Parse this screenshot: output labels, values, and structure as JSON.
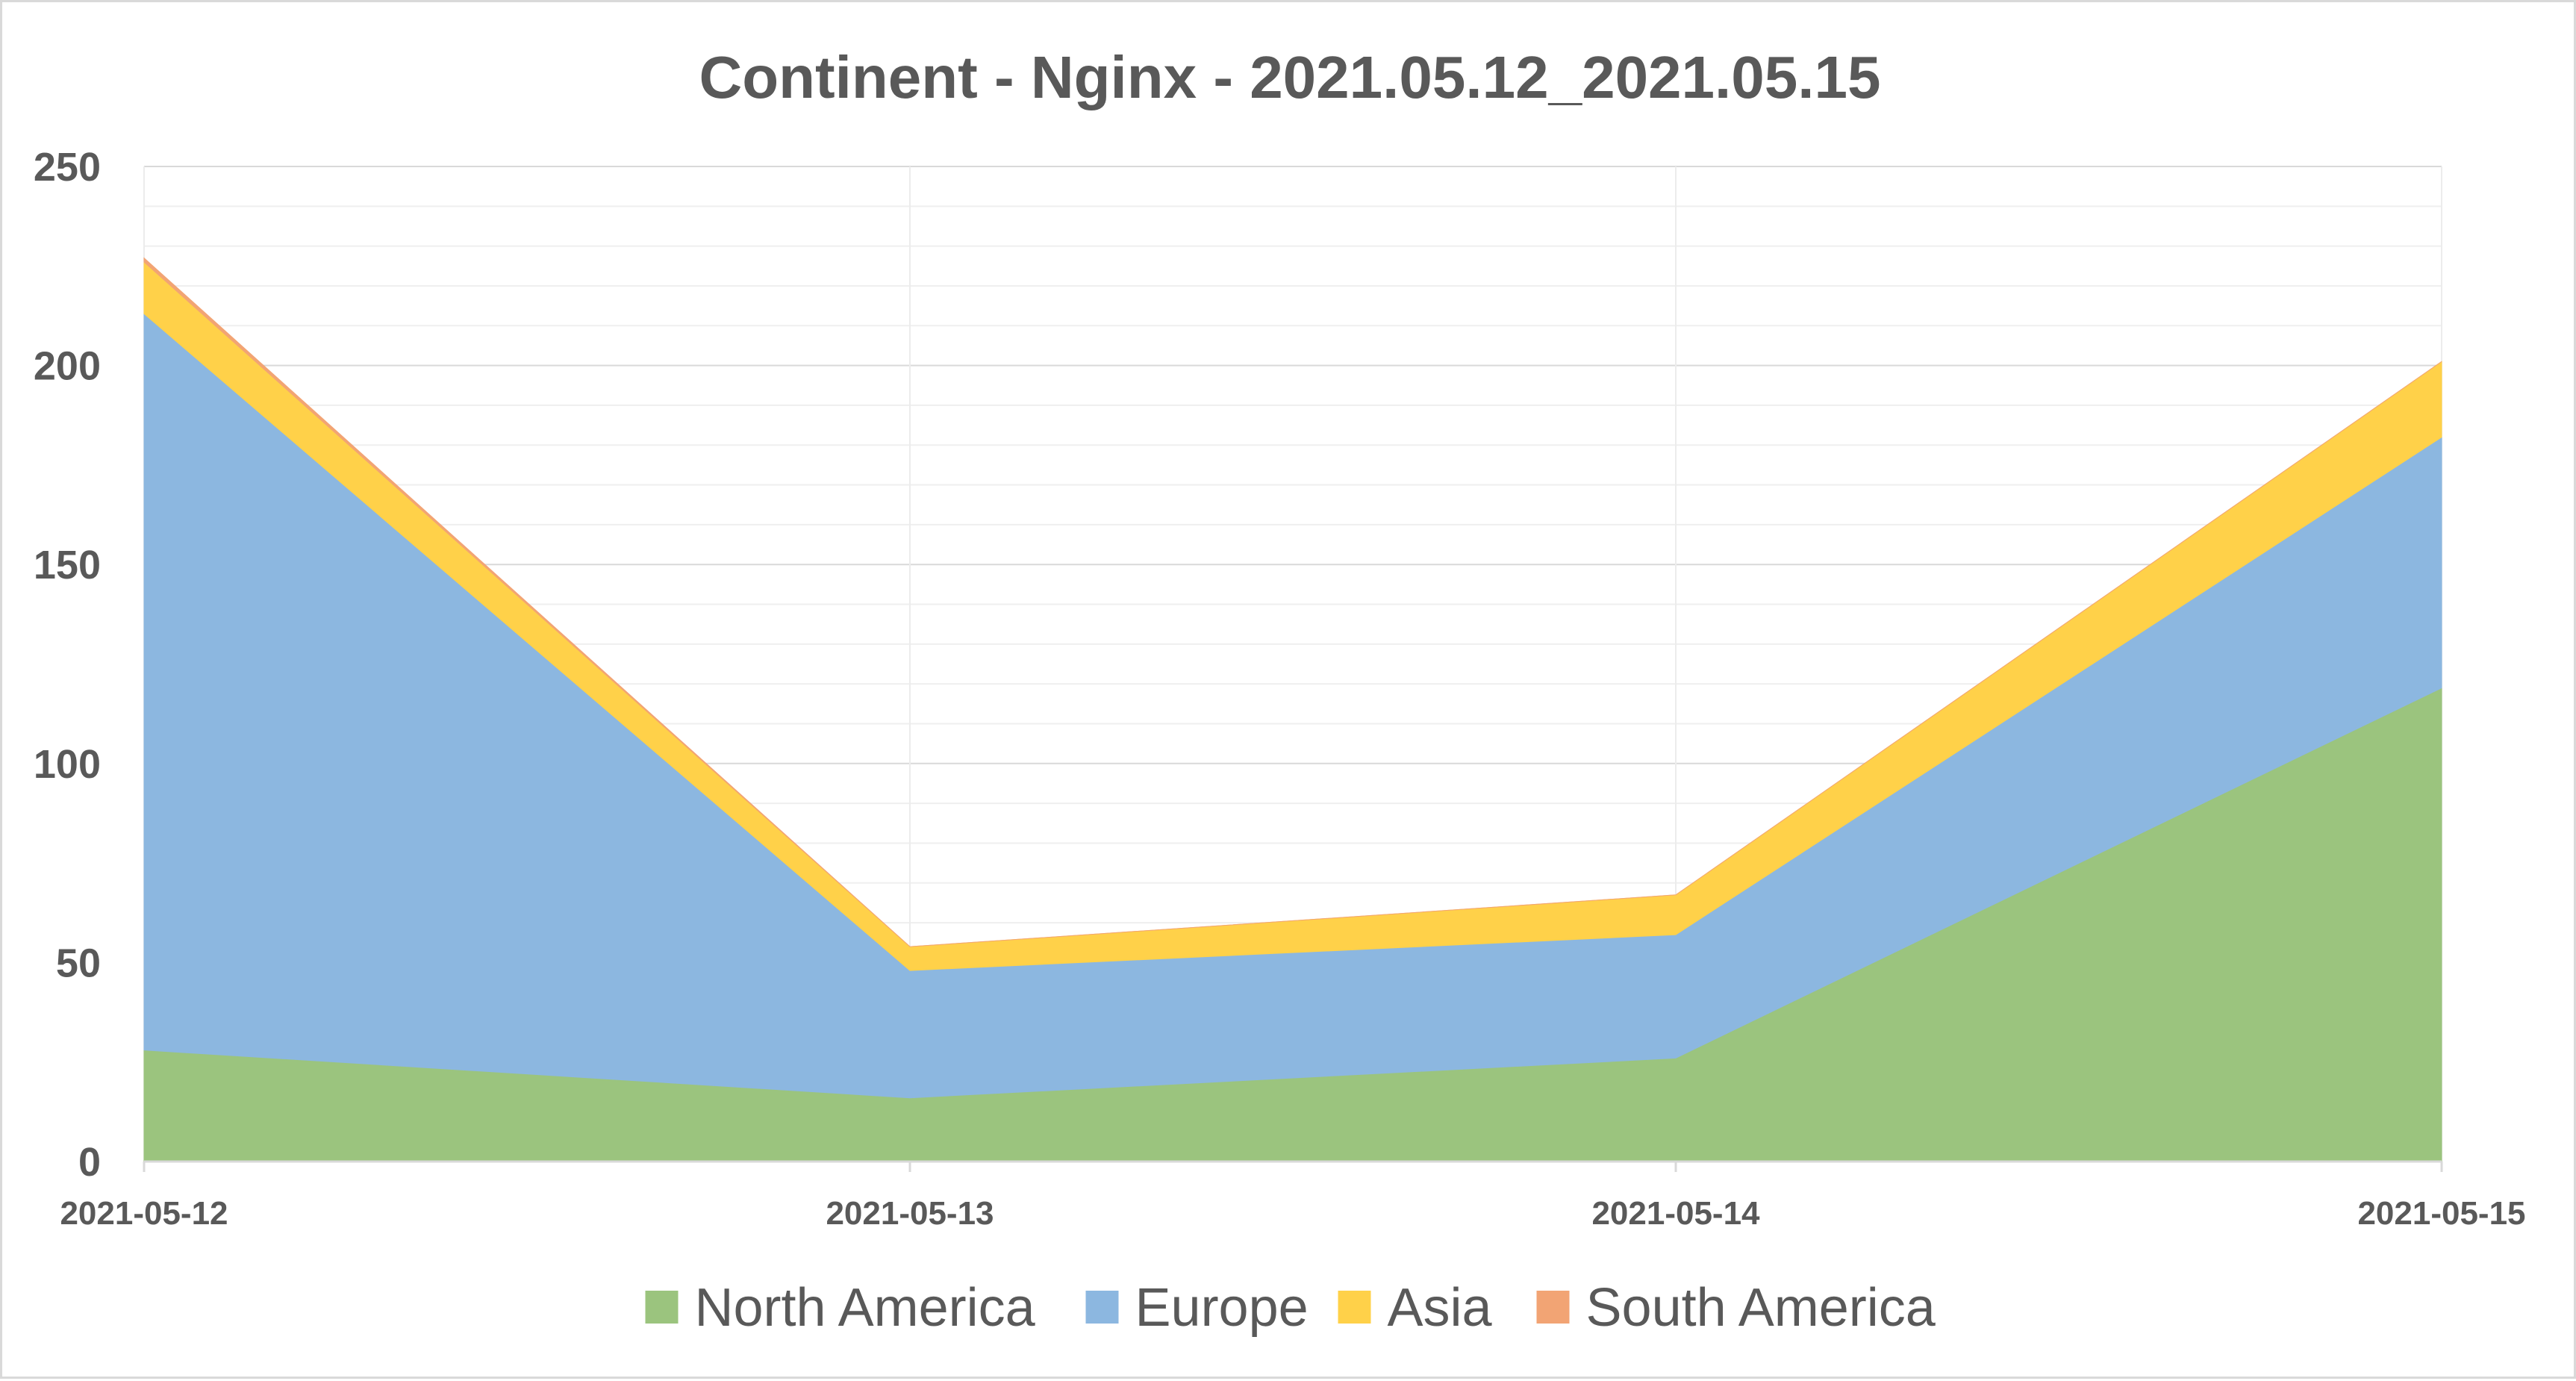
{
  "chart_data": {
    "type": "area",
    "stacked": true,
    "title": "Continent - Nginx - 2021.05.12_2021.05.15",
    "xlabel": "",
    "ylabel": "",
    "x": [
      "2021-05-12",
      "2021-05-13",
      "2021-05-14",
      "2021-05-15"
    ],
    "ylim": [
      0,
      250
    ],
    "yticks": [
      0,
      50,
      100,
      150,
      200,
      250
    ],
    "grid": true,
    "legend": "bottom",
    "series": [
      {
        "name": "North America",
        "color": "#9bc47e",
        "values": [
          28,
          16,
          26,
          119
        ]
      },
      {
        "name": "Europe",
        "color": "#8cb7e0",
        "values": [
          185,
          32,
          31,
          63
        ]
      },
      {
        "name": "Asia",
        "color": "#ffd149",
        "values": [
          13,
          6,
          10,
          19
        ]
      },
      {
        "name": "South America",
        "color": "#f2a474",
        "values": [
          1,
          0,
          0,
          0
        ]
      }
    ]
  }
}
